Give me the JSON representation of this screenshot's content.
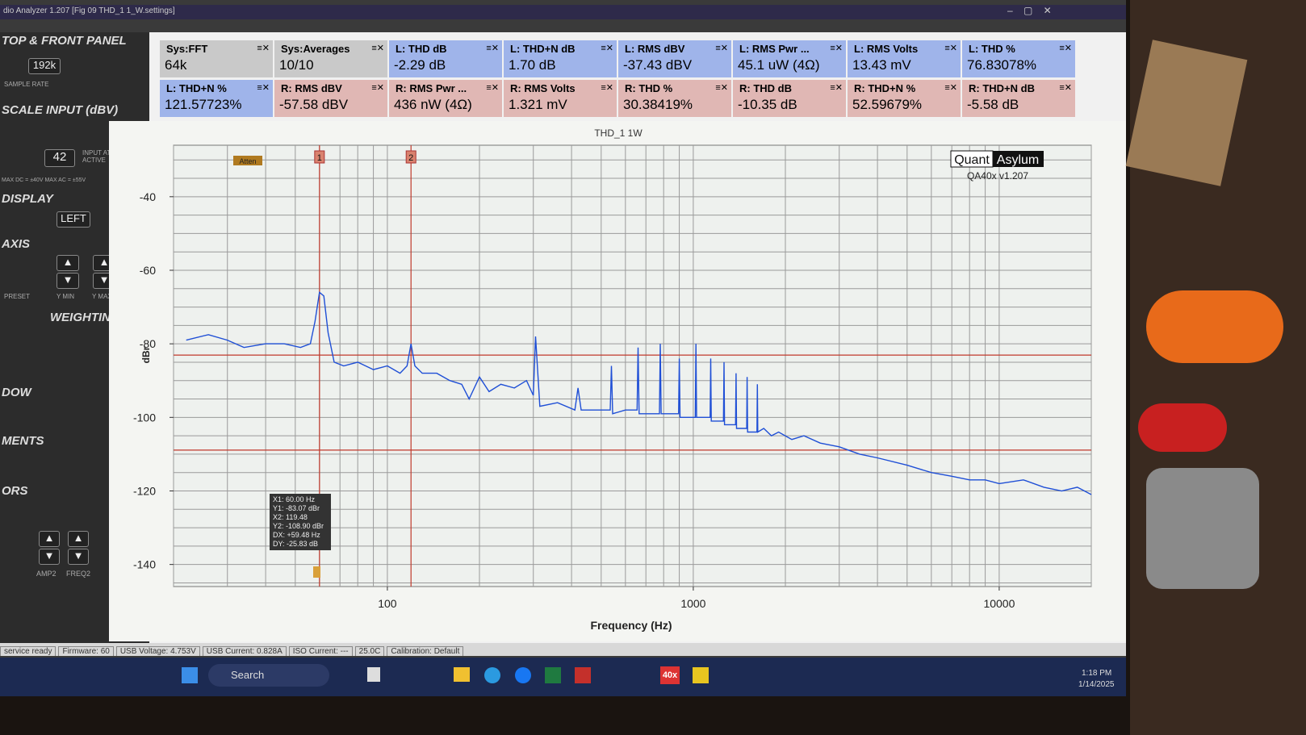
{
  "window_title": "dio Analyzer 1.207 [Fig 09 THD_1 1_W.settings]",
  "left_panel": {
    "top_front_panel": "TOP & FRONT PANEL",
    "sample_rate_value": "192k",
    "sample_rate_label": "SAMPLE RATE",
    "scale_input": "SCALE INPUT (dBV)",
    "input_atten_value": "42",
    "input_atten_label": "INPUT ATTEN ACTIVE",
    "max_limits": "MAX DC = ±40V  MAX AC = ±55V",
    "display": "DISPLAY",
    "display_channel": "LEFT",
    "axis": "AXIS",
    "preset": "PRESET",
    "y_min": "Y MIN",
    "y_max": "Y MAX",
    "weighting": "WEIGHTING",
    "window": "DOW",
    "measurements": "MENTS",
    "generators": "ORS",
    "amp2": "AMP2",
    "freq2": "FREQ2"
  },
  "metrics": [
    {
      "label": "Sys:FFT",
      "value": "64k",
      "color": "#c9c9c9"
    },
    {
      "label": "Sys:Averages",
      "value": "10/10",
      "color": "#c9c9c9"
    },
    {
      "label": "L: THD dB",
      "value": "-2.29 dB",
      "color": "#9fb4ea"
    },
    {
      "label": "L: THD+N dB",
      "value": "1.70 dB",
      "color": "#9fb4ea"
    },
    {
      "label": "L: RMS dBV",
      "value": "-37.43 dBV",
      "color": "#9fb4ea"
    },
    {
      "label": "L: RMS Pwr ...",
      "value": "45.1 uW (4Ω)",
      "color": "#9fb4ea"
    },
    {
      "label": "L: RMS Volts",
      "value": "13.43 mV",
      "color": "#9fb4ea"
    },
    {
      "label": "L: THD %",
      "value": "76.83078%",
      "color": "#9fb4ea"
    },
    {
      "label": "L: THD+N %",
      "value": "121.57723%",
      "color": "#9fb4ea"
    },
    {
      "label": "R: RMS dBV",
      "value": "-57.58 dBV",
      "color": "#e0b7b4"
    },
    {
      "label": "R: RMS Pwr ...",
      "value": "436 nW (4Ω)",
      "color": "#e0b7b4"
    },
    {
      "label": "R: RMS Volts",
      "value": "1.321 mV",
      "color": "#e0b7b4"
    },
    {
      "label": "R: THD %",
      "value": "30.38419%",
      "color": "#e0b7b4"
    },
    {
      "label": "R: THD dB",
      "value": "-10.35 dB",
      "color": "#e0b7b4"
    },
    {
      "label": "R: THD+N %",
      "value": "52.59679%",
      "color": "#e0b7b4"
    },
    {
      "label": "R: THD+N dB",
      "value": "-5.58 dB",
      "color": "#e0b7b4"
    }
  ],
  "plot": {
    "type": "line",
    "title": "THD_1 1W",
    "x_label": "Frequency (Hz)",
    "y_label": "dBr",
    "x_log": true,
    "grid": true,
    "xlim": [
      20,
      20000
    ],
    "ylim": [
      -146,
      -26
    ],
    "xticks": [
      100,
      1000,
      10000
    ],
    "yticks": [
      -40,
      -60,
      -80,
      -100,
      -120,
      -140
    ],
    "x_grid": [
      20,
      30,
      40,
      50,
      60,
      70,
      80,
      90,
      100,
      200,
      300,
      400,
      500,
      600,
      700,
      800,
      900,
      1000,
      2000,
      3000,
      4000,
      5000,
      6000,
      7000,
      8000,
      9000,
      10000,
      20000
    ],
    "y_grid": [
      -145,
      -140,
      -135,
      -130,
      -125,
      -120,
      -115,
      -110,
      -105,
      -100,
      -95,
      -90,
      -85,
      -80,
      -75,
      -70,
      -65,
      -60,
      -55,
      -50,
      -45,
      -40,
      -35,
      -30
    ],
    "x": [
      22,
      26,
      30,
      34,
      40,
      46,
      52,
      56,
      58,
      60,
      62,
      64,
      67,
      72,
      80,
      90,
      100,
      110,
      116,
      119.5,
      123,
      130,
      145,
      160,
      175,
      185,
      200,
      215,
      235,
      260,
      285,
      300,
      305,
      315,
      360,
      410,
      420,
      430,
      480,
      535,
      540,
      545,
      600,
      655,
      660,
      665,
      720,
      775,
      780,
      785,
      840,
      895,
      900,
      905,
      960,
      1015,
      1020,
      1025,
      1080,
      1135,
      1140,
      1145,
      1200,
      1255,
      1260,
      1265,
      1320,
      1375,
      1380,
      1385,
      1440,
      1495,
      1500,
      1505,
      1560,
      1615,
      1620,
      1625,
      1700,
      1800,
      1900,
      2100,
      2300,
      2600,
      3000,
      3500,
      4000,
      5000,
      6000,
      7000,
      8000,
      9000,
      10000,
      12000,
      14000,
      16000,
      18000,
      20000
    ],
    "series": [
      {
        "color": "#1f4fd6",
        "values": [
          -79,
          -77.5,
          -79,
          -81,
          -80,
          -80,
          -81,
          -80,
          -74,
          -66,
          -67,
          -77,
          -85,
          -86,
          -85,
          -87,
          -86,
          -88,
          -86,
          -80,
          -86,
          -88,
          -88,
          -90,
          -91,
          -95,
          -89,
          -93,
          -91,
          -92,
          -90,
          -94,
          -78,
          -97,
          -96,
          -98,
          -92,
          -98,
          -98,
          -98,
          -86,
          -99,
          -98,
          -98,
          -81,
          -99,
          -99,
          -99,
          -80,
          -99,
          -99,
          -99,
          -84,
          -100,
          -100,
          -100,
          -80,
          -100,
          -100,
          -100,
          -84,
          -101,
          -101,
          -101,
          -85,
          -102,
          -102,
          -102,
          -88,
          -103,
          -103,
          -103,
          -89,
          -104,
          -104,
          -104,
          -91,
          -104,
          -103,
          -105,
          -104,
          -106,
          -105,
          -107,
          -108,
          -110,
          -111,
          -113,
          -115,
          -116,
          -117,
          -117,
          -118,
          -117,
          -119,
          -120,
          -119,
          -121
        ]
      }
    ],
    "cursors": {
      "x1": 60,
      "y1": -83.07,
      "x2": 119.48,
      "y2": -108.9,
      "marker1": "1",
      "marker2": "2",
      "color": "#c0392b"
    },
    "readout": [
      "X1: 60.00 Hz",
      "Y1: -83.07 dBr",
      "X2: 119.48",
      "Y2: -108.90 dBr",
      "DX: +59.48 Hz",
      "DY: -25.83 dB"
    ],
    "atten_label": "Atten",
    "logo": {
      "left": "Quant",
      "right": "Asylum",
      "version": "QA40x v1.207"
    }
  },
  "status_bar": [
    "service ready",
    "Firmware: 60",
    "USB Voltage: 4.753V",
    "USB Current: 0.828A",
    "ISO Current: ---",
    "25.0C",
    "Calibration: Default"
  ],
  "taskbar": {
    "search": "Search",
    "app_label": "40x",
    "time": "1:18 PM",
    "date": "1/14/2025"
  }
}
